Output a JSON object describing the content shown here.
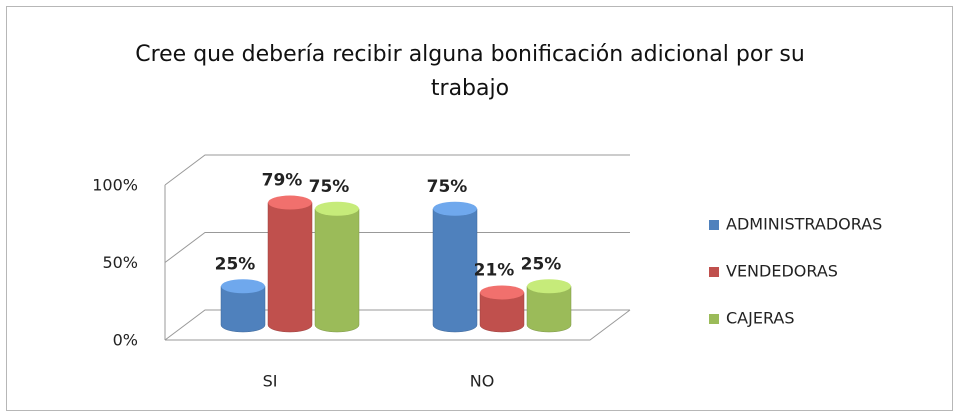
{
  "chart_data": {
    "type": "bar3d",
    "title": "Cree que debería recibir alguna bonificación adicional por su trabajo",
    "categories": [
      "SI",
      "NO"
    ],
    "series": [
      {
        "name": "ADMINISTRADORAS",
        "color": "#4f81bd",
        "values": [
          25,
          75
        ],
        "value_labels": [
          "25%",
          "75%"
        ]
      },
      {
        "name": "VENDEDORAS",
        "color": "#c0504d",
        "values": [
          79,
          21
        ],
        "value_labels": [
          "79%",
          "21%"
        ]
      },
      {
        "name": "CAJERAS",
        "color": "#9bbb59",
        "values": [
          75,
          25
        ],
        "value_labels": [
          "75%",
          "25%"
        ]
      }
    ],
    "ylim": [
      0,
      100
    ],
    "yticks": [
      {
        "value": 0,
        "label": "0%"
      },
      {
        "value": 50,
        "label": "50%"
      },
      {
        "value": 100,
        "label": "100%"
      }
    ],
    "grid": true,
    "legend": "right"
  }
}
